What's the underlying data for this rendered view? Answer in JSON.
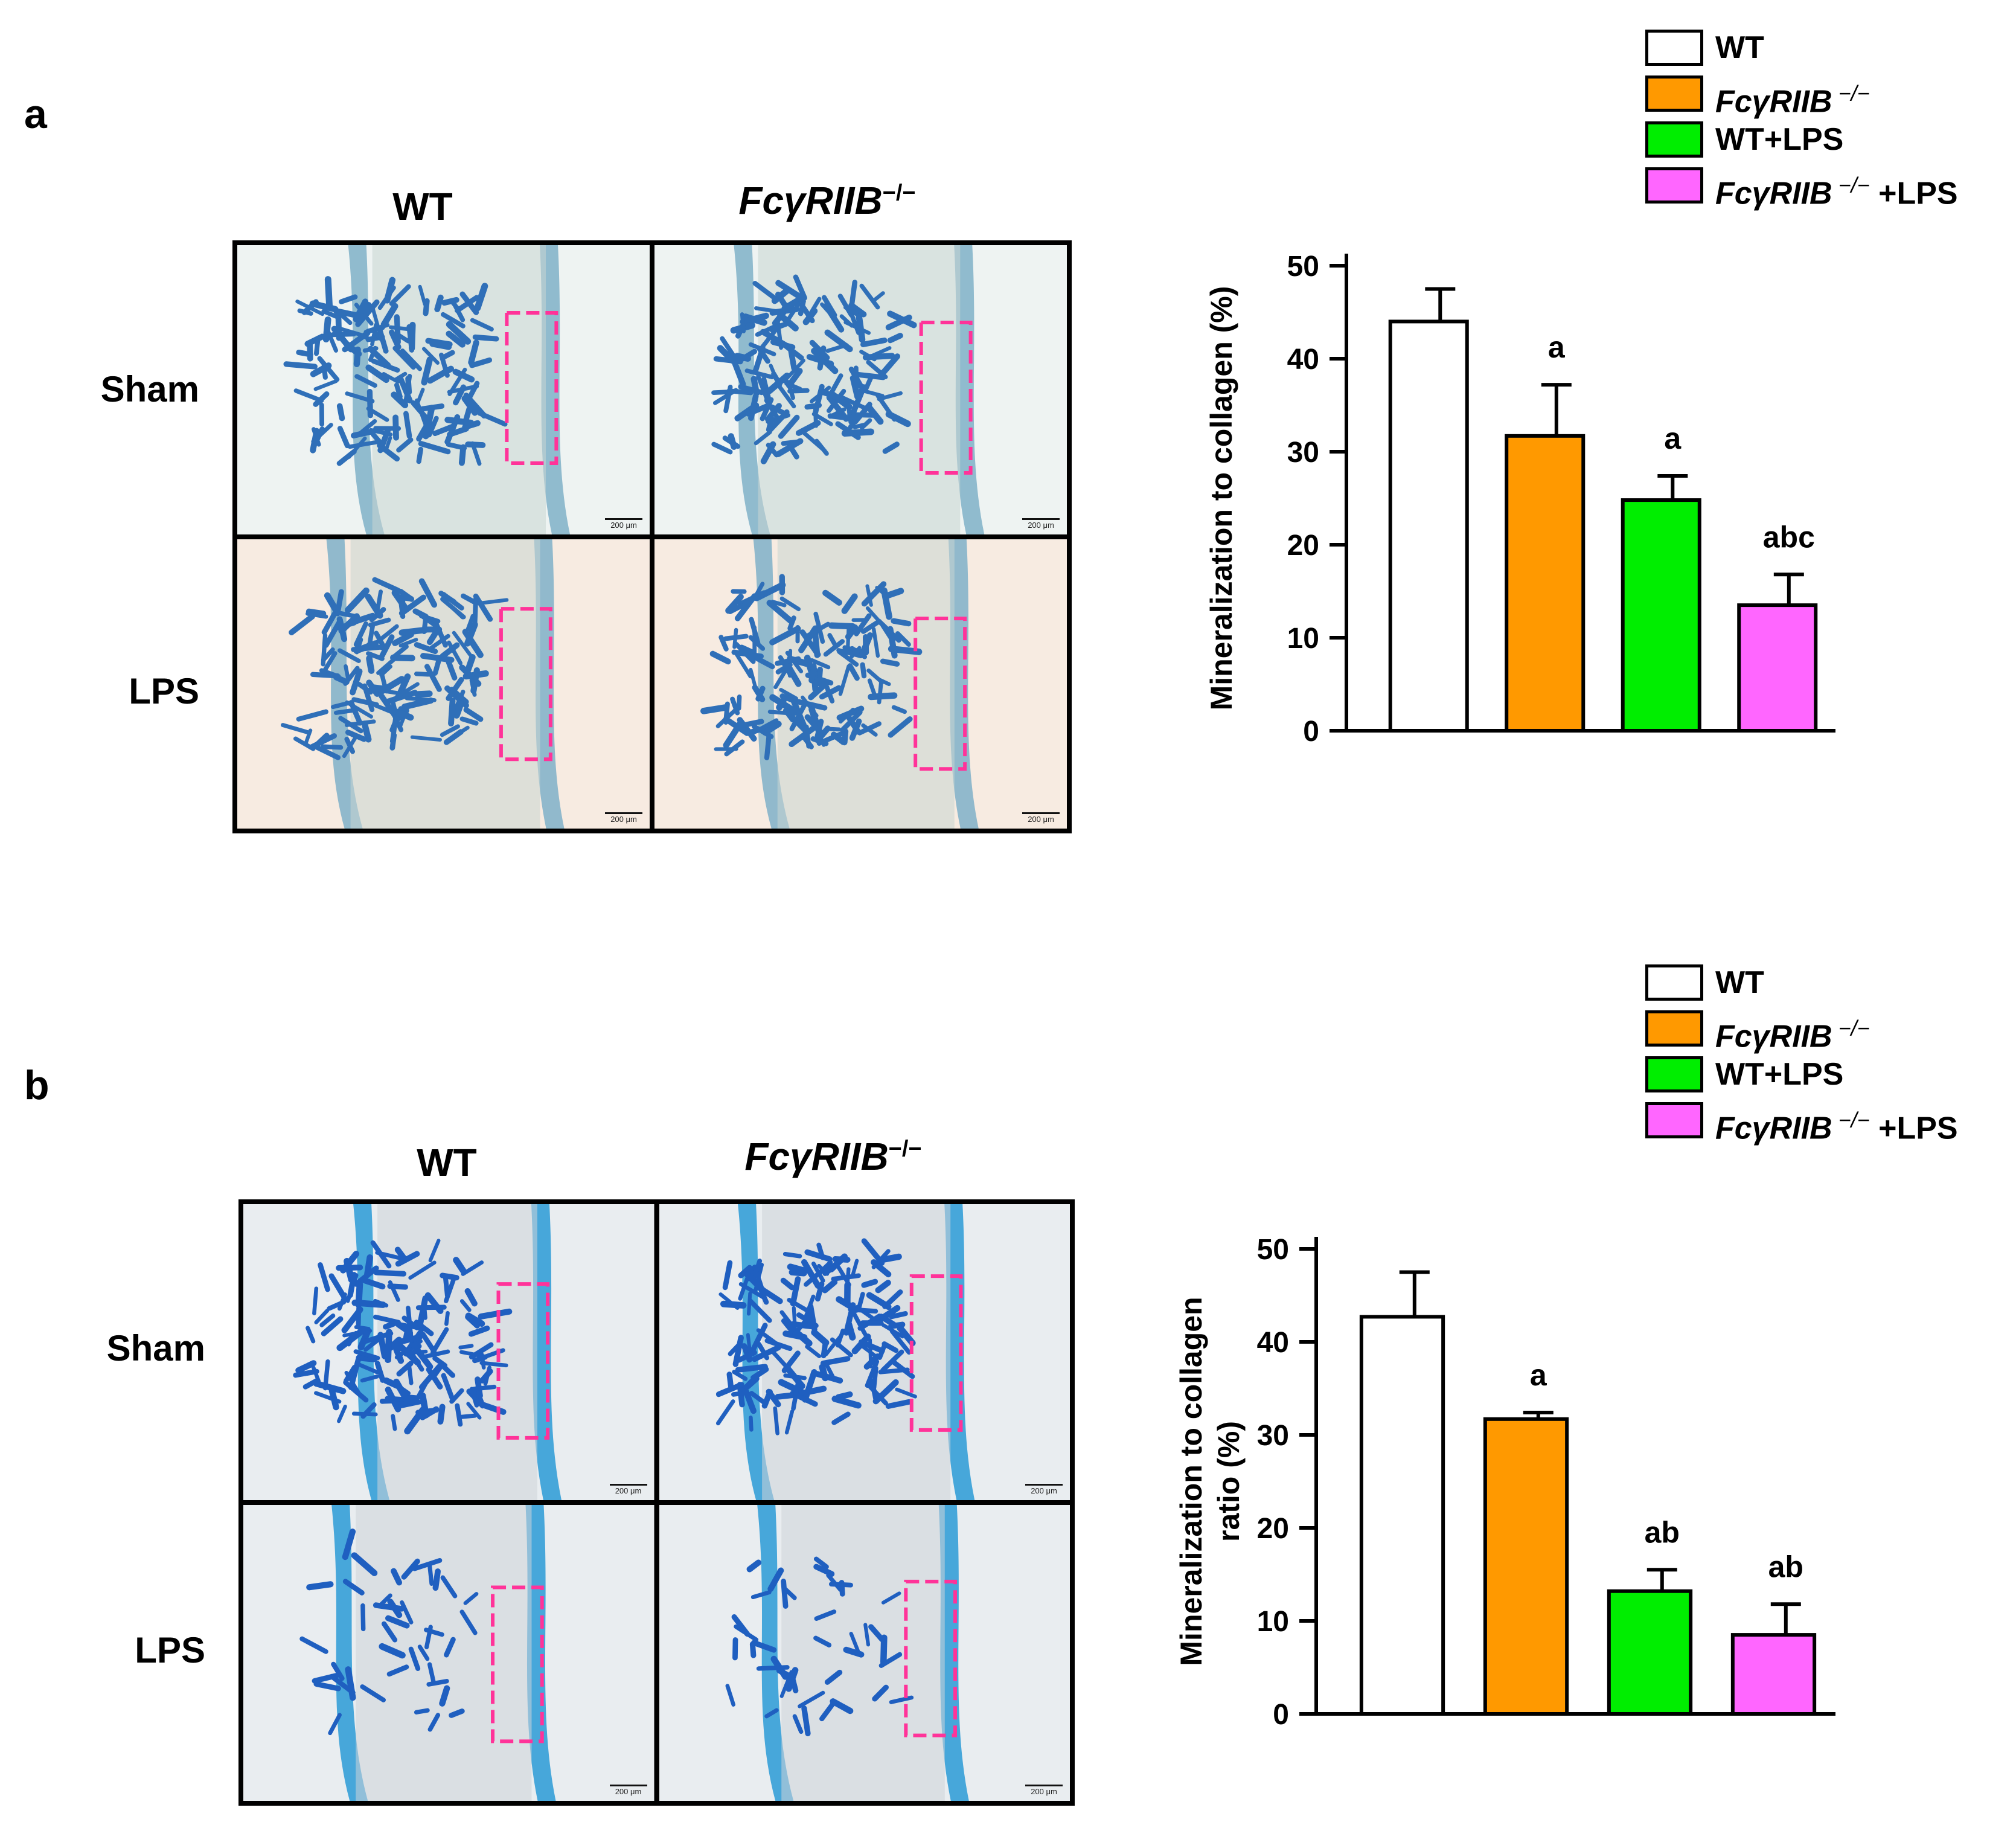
{
  "panels": [
    {
      "label": "a",
      "columns": [
        "WT",
        "FcγRIIB"
      ],
      "column_superscripts": [
        "",
        "−/−"
      ],
      "rows": [
        "Sham",
        "LPS"
      ],
      "scale_label": "200 μm",
      "legend": [
        {
          "label": "WT",
          "suffix": "",
          "italic": false,
          "color": "#ffffff"
        },
        {
          "label": "FcγRIIB",
          "superscript": "−/−",
          "suffix": "",
          "italic": true,
          "color": "#ff9900"
        },
        {
          "label": "WT+LPS",
          "suffix": "",
          "italic": false,
          "color": "#00ee00"
        },
        {
          "label": "FcγRIIB",
          "superscript": "−/−",
          "suffix": "+LPS",
          "italic": true,
          "color": "#ff66ff"
        }
      ]
    },
    {
      "label": "b",
      "columns": [
        "WT",
        "FcγRIIB"
      ],
      "column_superscripts": [
        "",
        "−/−"
      ],
      "rows": [
        "Sham",
        "LPS"
      ],
      "scale_label": "200 μm",
      "legend": [
        {
          "label": "WT",
          "suffix": "",
          "italic": false,
          "color": "#ffffff"
        },
        {
          "label": "FcγRIIB",
          "superscript": "−/−",
          "suffix": "",
          "italic": true,
          "color": "#ff9900"
        },
        {
          "label": "WT+LPS",
          "suffix": "",
          "italic": false,
          "color": "#00ee00"
        },
        {
          "label": "FcγRIIB",
          "superscript": "−/−",
          "suffix": "+LPS",
          "italic": true,
          "color": "#ff66ff"
        }
      ]
    }
  ],
  "chart_data": [
    {
      "type": "bar",
      "panel": "a",
      "categories": [
        "WT",
        "FcγRIIB−/−",
        "WT+LPS",
        "FcγRIIB−/−+LPS"
      ],
      "values": [
        44,
        31.7,
        24.8,
        13.5
      ],
      "errors": [
        3.5,
        5.5,
        2.6,
        3.3
      ],
      "annotations": [
        "",
        "a",
        "a",
        "abc"
      ],
      "colors": [
        "#ffffff",
        "#ff9900",
        "#00ee00",
        "#ff66ff"
      ],
      "ylabel_lines": [
        "Mineralization to collagen (%)"
      ],
      "yticks": [
        0,
        10,
        20,
        30,
        40,
        50
      ],
      "ylim": [
        0,
        50
      ]
    },
    {
      "type": "bar",
      "panel": "b",
      "categories": [
        "WT",
        "FcγRIIB−/−",
        "WT+LPS",
        "FcγRIIB−/−+LPS"
      ],
      "values": [
        42.7,
        31.7,
        13.2,
        8.5
      ],
      "errors": [
        4.8,
        0.7,
        2.3,
        3.3
      ],
      "annotations": [
        "",
        "a",
        "ab",
        "ab"
      ],
      "colors": [
        "#ffffff",
        "#ff9900",
        "#00ee00",
        "#ff66ff"
      ],
      "ylabel_lines": [
        "Mineralization to collagen",
        "ratio (%)"
      ],
      "yticks": [
        0,
        10,
        20,
        30,
        40,
        50
      ],
      "ylim": [
        0,
        50
      ]
    }
  ]
}
